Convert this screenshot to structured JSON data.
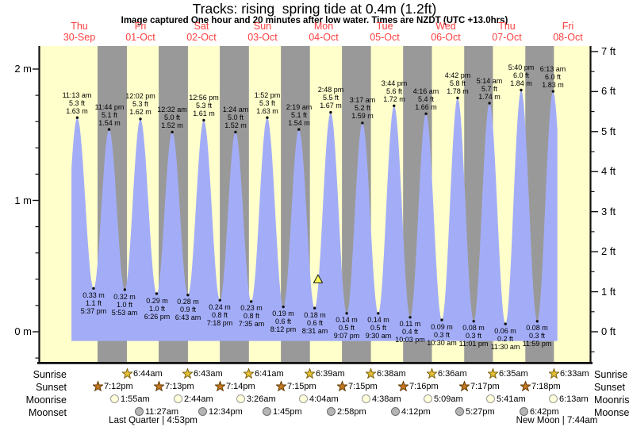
{
  "title": "Tracks: rising  spring tide at 0.4m (1.2ft)",
  "subtitle": "Image captured One hour and 20 minutes after low water. Times are NZDT (UTC +13.0hrs)",
  "colors": {
    "day_band": "#ffffcc",
    "night_band": "#999999",
    "tide_fill": "#a3adf7",
    "date_label": "#ff4040",
    "marker": "#ffff55",
    "axis": "#111111",
    "text": "#000000"
  },
  "chart_data": {
    "type": "area",
    "title": "Tracks: rising  spring tide at 0.4m (1.2ft)",
    "x_axis_note": "time, 9 days from Thu 30-Sep to Fri 08-Oct, t = hours since Thu 00:00",
    "days": [
      {
        "weekday": "Thu",
        "date": "30-Sep"
      },
      {
        "weekday": "Fri",
        "date": "01-Oct"
      },
      {
        "weekday": "Sat",
        "date": "02-Oct"
      },
      {
        "weekday": "Sun",
        "date": "03-Oct"
      },
      {
        "weekday": "Mon",
        "date": "04-Oct"
      },
      {
        "weekday": "Tue",
        "date": "05-Oct"
      },
      {
        "weekday": "Wed",
        "date": "06-Oct"
      },
      {
        "weekday": "Thu",
        "date": "07-Oct"
      },
      {
        "weekday": "Fri",
        "date": "08-Oct"
      }
    ],
    "y_axis_left": {
      "unit": "m",
      "ticks": [
        0,
        1,
        2
      ],
      "minor_step": 0.2,
      "range": [
        -0.24,
        2.16
      ]
    },
    "y_axis_right": {
      "unit": "ft",
      "ticks": [
        0,
        1,
        2,
        3,
        4,
        5,
        6,
        7
      ],
      "minor_step": 0.5
    },
    "tides": [
      {
        "type": "high",
        "time": "11:13 am",
        "t": 11.217,
        "ft": 5.3,
        "m": 1.63
      },
      {
        "type": "low",
        "time": "5:37 pm",
        "t": 17.617,
        "ft": 1.1,
        "m": 0.33
      },
      {
        "type": "high",
        "time": "11:44 pm",
        "t": 23.733,
        "ft": 5.1,
        "m": 1.54
      },
      {
        "type": "low",
        "time": "5:53 am",
        "t": 29.883,
        "ft": 1.0,
        "m": 0.32
      },
      {
        "type": "high",
        "time": "12:02 pm",
        "t": 36.033,
        "ft": 5.3,
        "m": 1.62
      },
      {
        "type": "low",
        "time": "6:26 pm",
        "t": 42.433,
        "ft": 1.0,
        "m": 0.29
      },
      {
        "type": "high",
        "time": "12:32 am",
        "t": 48.533,
        "ft": 5.0,
        "m": 1.52
      },
      {
        "type": "low",
        "time": "6:43 am",
        "t": 54.717,
        "ft": 0.9,
        "m": 0.28
      },
      {
        "type": "high",
        "time": "12:56 pm",
        "t": 60.933,
        "ft": 5.3,
        "m": 1.61
      },
      {
        "type": "low",
        "time": "7:18 pm",
        "t": 67.3,
        "ft": 0.8,
        "m": 0.24
      },
      {
        "type": "high",
        "time": "1:24 am",
        "t": 73.4,
        "ft": 5.0,
        "m": 1.52
      },
      {
        "type": "low",
        "time": "7:35 am",
        "t": 79.583,
        "ft": 0.8,
        "m": 0.23
      },
      {
        "type": "high",
        "time": "1:52 pm",
        "t": 85.867,
        "ft": 5.3,
        "m": 1.63
      },
      {
        "type": "low",
        "time": "8:12 pm",
        "t": 92.2,
        "ft": 0.6,
        "m": 0.19
      },
      {
        "type": "high",
        "time": "2:19 am",
        "t": 98.317,
        "ft": 5.1,
        "m": 1.54
      },
      {
        "type": "low",
        "time": "8:31 am",
        "t": 104.517,
        "ft": 0.6,
        "m": 0.18
      },
      {
        "type": "high",
        "time": "2:48 pm",
        "t": 110.8,
        "ft": 5.5,
        "m": 1.67
      },
      {
        "type": "low",
        "time": "9:07 pm",
        "t": 117.117,
        "ft": 0.5,
        "m": 0.14
      },
      {
        "type": "high",
        "time": "3:17 am",
        "t": 123.283,
        "ft": 5.2,
        "m": 1.59
      },
      {
        "type": "low",
        "time": "9:30 am",
        "t": 129.5,
        "ft": 0.5,
        "m": 0.14
      },
      {
        "type": "high",
        "time": "3:44 pm",
        "t": 135.733,
        "ft": 5.6,
        "m": 1.72
      },
      {
        "type": "low",
        "time": "10:03 pm",
        "t": 142.05,
        "ft": 0.4,
        "m": 0.11
      },
      {
        "type": "high",
        "time": "4:16 am",
        "t": 148.267,
        "ft": 5.4,
        "m": 1.66
      },
      {
        "type": "low",
        "time": "10:30 am",
        "t": 154.5,
        "ft": 0.3,
        "m": 0.09
      },
      {
        "type": "high",
        "time": "4:42 pm",
        "t": 160.7,
        "ft": 5.8,
        "m": 1.78
      },
      {
        "type": "low",
        "time": "11:01 pm",
        "t": 167.017,
        "ft": 0.3,
        "m": 0.08
      },
      {
        "type": "high",
        "time": "5:14 am",
        "t": 173.233,
        "ft": 5.7,
        "m": 1.74
      },
      {
        "type": "low",
        "time": "11:30 am",
        "t": 179.5,
        "ft": 0.2,
        "m": 0.06
      },
      {
        "type": "high",
        "time": "5:40 pm",
        "t": 185.667,
        "ft": 6.0,
        "m": 1.84
      },
      {
        "type": "low",
        "time": "11:59 pm",
        "t": 191.983,
        "ft": 0.3,
        "m": 0.08
      },
      {
        "type": "high",
        "time": "6:13 am",
        "t": 198.217,
        "ft": 6.0,
        "m": 1.83
      }
    ],
    "marker": {
      "t": 105.85,
      "height_m": 0.4
    }
  },
  "astro": {
    "rows": [
      {
        "key": "sunrise",
        "label": "Sunrise",
        "events": [
          {
            "time": "6:44am",
            "t": 30.733
          },
          {
            "time": "6:43am",
            "t": 54.717
          },
          {
            "time": "6:41am",
            "t": 78.683
          },
          {
            "time": "6:39am",
            "t": 102.65
          },
          {
            "time": "6:38am",
            "t": 126.633
          },
          {
            "time": "6:36am",
            "t": 150.6
          },
          {
            "time": "6:35am",
            "t": 174.583
          },
          {
            "time": "6:33am",
            "t": 198.55
          }
        ]
      },
      {
        "key": "sunset",
        "label": "Sunset",
        "events": [
          {
            "time": "7:12pm",
            "t": 19.2
          },
          {
            "time": "7:13pm",
            "t": 43.217
          },
          {
            "time": "7:14pm",
            "t": 67.233
          },
          {
            "time": "7:15pm",
            "t": 91.25
          },
          {
            "time": "7:15pm",
            "t": 115.25
          },
          {
            "time": "7:16pm",
            "t": 139.267
          },
          {
            "time": "7:17pm",
            "t": 163.283
          },
          {
            "time": "7:18pm",
            "t": 187.3
          }
        ]
      },
      {
        "key": "moonrise",
        "label": "Moonrise",
        "events": [
          {
            "time": "1:55am",
            "t": 25.917
          },
          {
            "time": "2:44am",
            "t": 50.733
          },
          {
            "time": "3:26am",
            "t": 75.433
          },
          {
            "time": "4:04am",
            "t": 100.067
          },
          {
            "time": "4:38am",
            "t": 124.633
          },
          {
            "time": "5:09am",
            "t": 149.15
          },
          {
            "time": "5:41am",
            "t": 173.683
          },
          {
            "time": "6:13am",
            "t": 198.217
          }
        ]
      },
      {
        "key": "moonset",
        "label": "Moonset",
        "events": [
          {
            "time": "11:27am",
            "t": 35.45
          },
          {
            "time": "12:34pm",
            "t": 60.567
          },
          {
            "time": "1:45pm",
            "t": 85.75
          },
          {
            "time": "2:58pm",
            "t": 110.967
          },
          {
            "time": "4:12pm",
            "t": 136.2
          },
          {
            "time": "5:27pm",
            "t": 161.45
          },
          {
            "time": "6:42pm",
            "t": 186.7
          }
        ]
      }
    ],
    "phases": [
      {
        "label": "Last Quarter | 4:53pm",
        "t": 40.883
      },
      {
        "label": "New Moon | 7:44am",
        "t": 199.733
      }
    ]
  }
}
